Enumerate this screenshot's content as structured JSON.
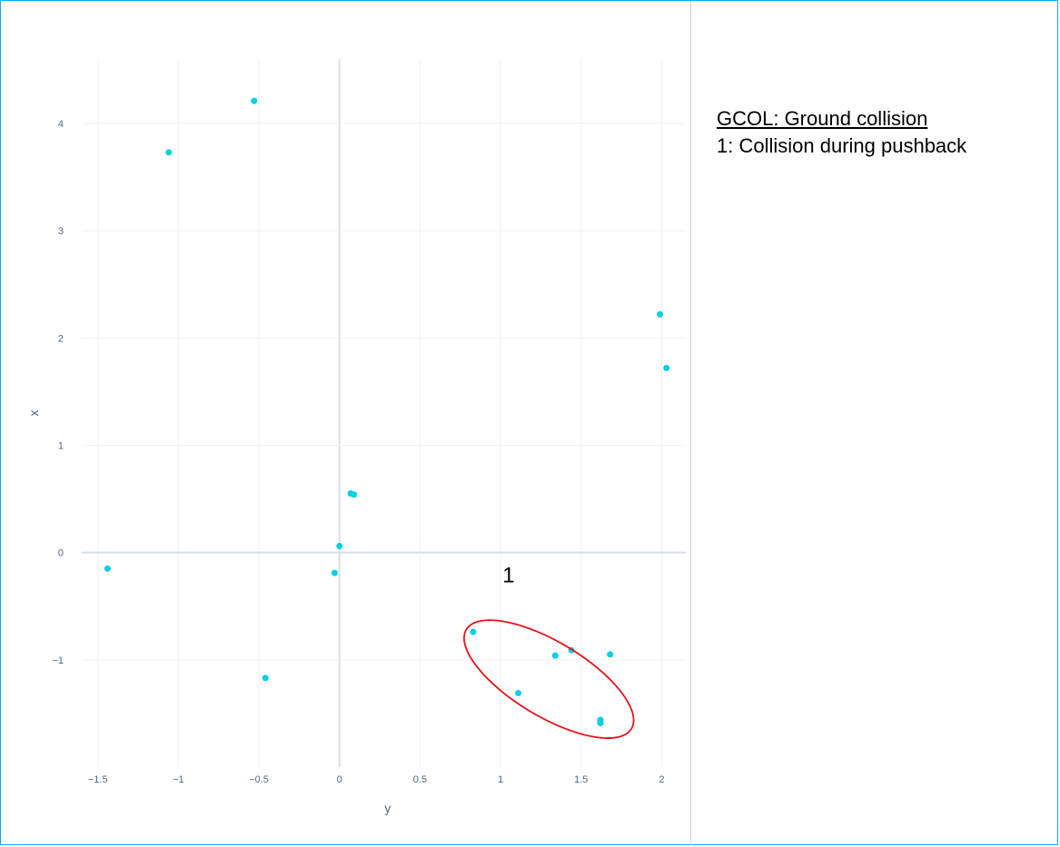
{
  "chart_data": {
    "type": "scatter",
    "xlabel": "y",
    "ylabel": "x",
    "xlim": [
      -1.6,
      2.15
    ],
    "ylim": [
      -2.0,
      4.6
    ],
    "x_ticks": [
      -1.5,
      -1,
      -0.5,
      0,
      0.5,
      1,
      1.5,
      2
    ],
    "x_tick_labels": [
      "−1.5",
      "−1",
      "−0.5",
      "0",
      "0.5",
      "1",
      "1.5",
      "2"
    ],
    "y_ticks": [
      -1,
      0,
      1,
      2,
      3,
      4
    ],
    "y_tick_labels": [
      "−1",
      "0",
      "1",
      "2",
      "3",
      "4"
    ],
    "grid": true,
    "marker_color": "#00cfe6",
    "series": [
      {
        "points": [
          [
            -0.53,
            4.21
          ],
          [
            -1.06,
            3.73
          ],
          [
            1.99,
            2.22
          ],
          [
            2.03,
            1.72
          ],
          [
            0.07,
            0.55
          ],
          [
            0.09,
            0.54
          ],
          [
            0.0,
            0.06
          ],
          [
            -0.03,
            -0.19
          ],
          [
            -1.44,
            -0.15
          ],
          [
            -0.46,
            -1.17
          ],
          [
            0.83,
            -0.74
          ],
          [
            1.34,
            -0.96
          ],
          [
            1.44,
            -0.91
          ],
          [
            1.68,
            -0.95
          ],
          [
            1.11,
            -1.31
          ],
          [
            1.62,
            -1.56
          ],
          [
            1.62,
            -1.59
          ]
        ]
      }
    ],
    "annotations": [
      {
        "label": "1",
        "cluster_center": [
          1.3,
          -1.18
        ],
        "cluster_radius": [
          0.65,
          0.56
        ],
        "color": "#e8121a"
      }
    ]
  },
  "legend": {
    "title": "GCOL: Ground collision",
    "item": "1:  Collision during pushback"
  }
}
